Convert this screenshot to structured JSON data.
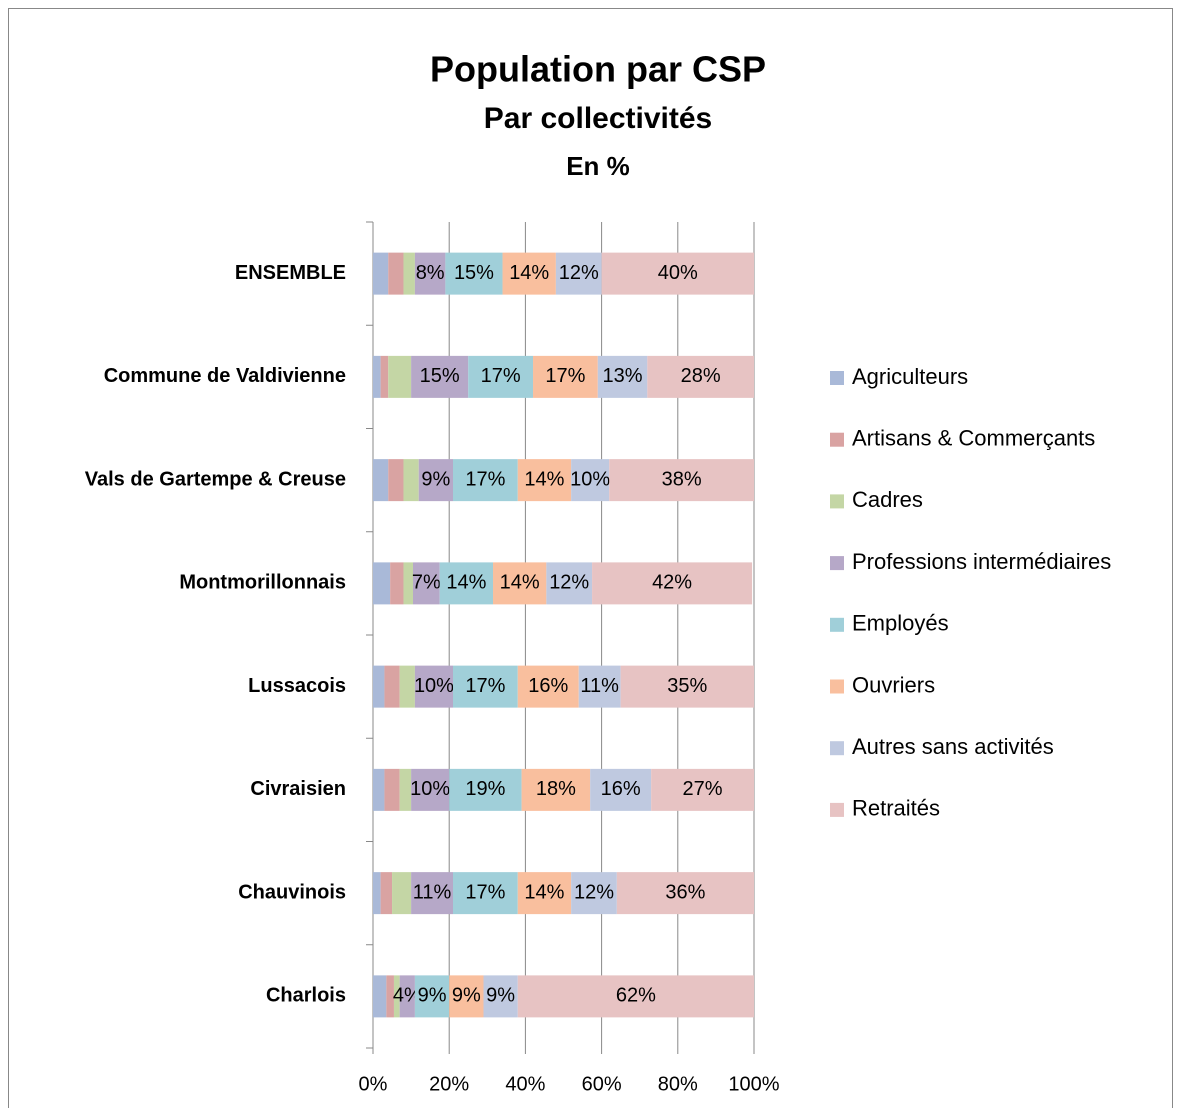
{
  "chart_data": {
    "type": "stacked_hbar",
    "title": "Population par CSP",
    "subtitle": "Par collectivités",
    "unit_label": "En %",
    "categories": [
      "ENSEMBLE",
      "Commune de Valdivienne",
      "Vals de Gartempe & Creuse",
      "Montmorillonnais",
      "Lussacois",
      "Civraisien",
      "Chauvinois",
      "Charlois"
    ],
    "series": [
      {
        "name": "Agriculteurs",
        "color": "#a9b9d8",
        "values": [
          4,
          2,
          4,
          4.5,
          3,
          3,
          2,
          3.5
        ],
        "value_labels": [
          null,
          null,
          null,
          null,
          null,
          null,
          null,
          null
        ]
      },
      {
        "name": "Artisans & Commerçants",
        "color": "#d9a3a2",
        "values": [
          4,
          2,
          4,
          3.5,
          4,
          4,
          3,
          2
        ],
        "value_labels": [
          null,
          null,
          null,
          null,
          null,
          null,
          null,
          null
        ]
      },
      {
        "name": "Cadres",
        "color": "#c4d6a5",
        "values": [
          3,
          6,
          4,
          2.5,
          4,
          3,
          5,
          1.5
        ],
        "value_labels": [
          null,
          null,
          null,
          null,
          null,
          null,
          null,
          null
        ]
      },
      {
        "name": "Professions intermédiaires",
        "color": "#b6a8c8",
        "values": [
          8,
          15,
          9,
          7,
          10,
          10,
          11,
          4
        ],
        "value_labels": [
          "8%",
          "15%",
          "9%",
          "7%",
          "10%",
          "10%",
          "11%",
          "4%"
        ]
      },
      {
        "name": "Employés",
        "color": "#a0cfd9",
        "values": [
          15,
          17,
          17,
          14,
          17,
          19,
          17,
          9
        ],
        "value_labels": [
          "15%",
          "17%",
          "17%",
          "14%",
          "17%",
          "19%",
          "17%",
          "9%"
        ]
      },
      {
        "name": "Ouvriers",
        "color": "#f9bf9e",
        "values": [
          14,
          17,
          14,
          14,
          16,
          18,
          14,
          9
        ],
        "value_labels": [
          "14%",
          "17%",
          "14%",
          "14%",
          "16%",
          "18%",
          "14%",
          "9%"
        ]
      },
      {
        "name": "Autres sans activités",
        "color": "#bfc9e0",
        "values": [
          12,
          13,
          10,
          12,
          11,
          16,
          12,
          9
        ],
        "value_labels": [
          "12%",
          "13%",
          "10%",
          "12%",
          "11%",
          "16%",
          "12%",
          "9%"
        ]
      },
      {
        "name": "Retraités",
        "color": "#e7c3c3",
        "values": [
          40,
          28,
          38,
          42,
          35,
          27,
          36,
          62
        ],
        "value_labels": [
          "40%",
          "28%",
          "38%",
          "42%",
          "35%",
          "27%",
          "36%",
          "62%"
        ]
      }
    ],
    "xlim": [
      0,
      100
    ],
    "xticks": [
      {
        "value": 0,
        "label": "0%"
      },
      {
        "value": 20,
        "label": "20%"
      },
      {
        "value": 40,
        "label": "40%"
      },
      {
        "value": 60,
        "label": "60%"
      },
      {
        "value": 80,
        "label": "80%"
      },
      {
        "value": 100,
        "label": "100%"
      }
    ],
    "grid": true,
    "legend": "right"
  }
}
